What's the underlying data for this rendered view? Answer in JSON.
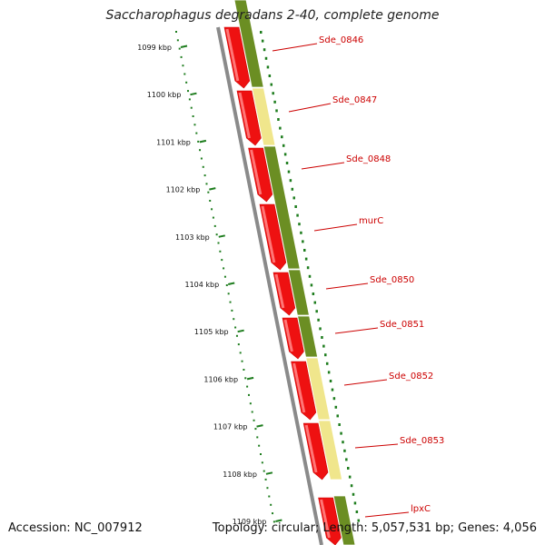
{
  "title": "Saccharophagus degradans 2-40, complete genome",
  "footer": {
    "accession": "Accession: NC_007912",
    "topology": "Topology: circular; Length: 5,057,531 bp; Genes: 4,056"
  },
  "colors": {
    "forward_gene": "#ee1111",
    "cds_green": "#6b8e23",
    "cds_pale": "#f0e68c",
    "ruler": "#1e7d1e",
    "label": "#cc0000",
    "backbone": "#8a8a8a"
  },
  "ruler": {
    "ticks": [
      "1099 kbp",
      "1100 kbp",
      "1101 kbp",
      "1102 kbp",
      "1103 kbp",
      "1104 kbp",
      "1105 kbp",
      "1106 kbp",
      "1107 kbp",
      "1108 kbp",
      "1109 kbp"
    ]
  },
  "genes": [
    {
      "label": "Sde_0846",
      "color": "green"
    },
    {
      "label": "Sde_0847",
      "color": "pale"
    },
    {
      "label": "Sde_0848",
      "color": "green"
    },
    {
      "label": "murC",
      "color": "green"
    },
    {
      "label": "Sde_0850",
      "color": "green"
    },
    {
      "label": "Sde_0851",
      "color": "green"
    },
    {
      "label": "Sde_0852",
      "color": "pale"
    },
    {
      "label": "Sde_0853",
      "color": "pale"
    },
    {
      "label": "lpxC",
      "color": "green"
    }
  ]
}
